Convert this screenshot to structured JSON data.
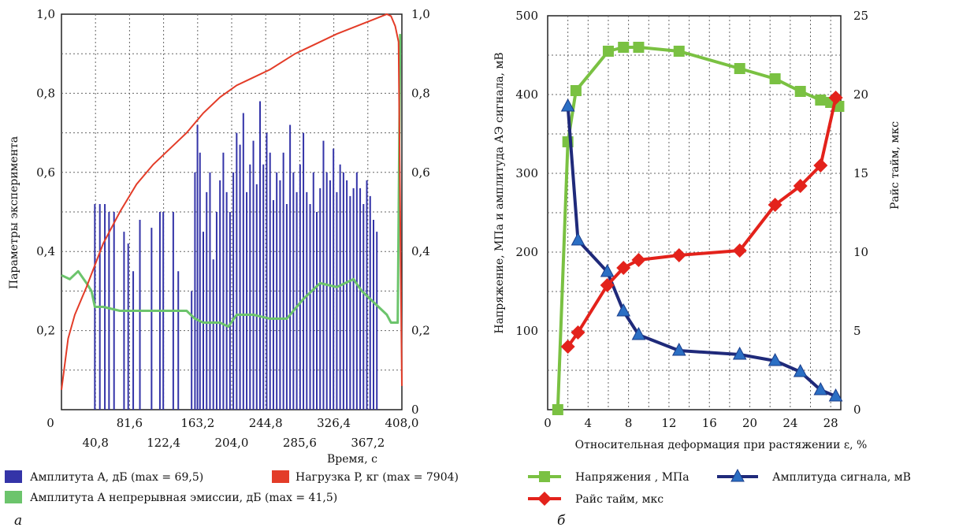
{
  "chart_data": [
    {
      "type": "bar",
      "panel_label": "а",
      "xlabel": "Время, с",
      "ylabel": "Параметры эксперимента",
      "xlim": [
        0,
        408
      ],
      "ylim": [
        0,
        1.0
      ],
      "x_ticks_upper": [
        "0",
        "81,6",
        "163,2",
        "244,8",
        "326,4",
        "408,0"
      ],
      "x_ticks_lower": [
        "40,8",
        "122,4",
        "204,0",
        "285,6",
        "367,2"
      ],
      "y_ticks_left": [
        "0,2",
        "0,4",
        "0,6",
        "0,8",
        "1,0"
      ],
      "y_ticks_right": [
        "0",
        "0,2",
        "0,4",
        "0,6",
        "0,8",
        "1,0"
      ],
      "grid": true,
      "legend_position": "bottom",
      "colors": {
        "amplitude": "#3434a8",
        "load": "#e33c28",
        "continuous": "#6cc46c"
      },
      "series": [
        {
          "name": "Амплитута A, дБ (max = 69,5)",
          "kind": "bars",
          "x": [
            40,
            46,
            52,
            57,
            63,
            75,
            80,
            86,
            94,
            108,
            118,
            122,
            134,
            140,
            156,
            160,
            163,
            166,
            170,
            174,
            178,
            182,
            186,
            190,
            194,
            198,
            202,
            206,
            210,
            214,
            218,
            222,
            226,
            230,
            234,
            238,
            242,
            246,
            250,
            254,
            258,
            262,
            266,
            270,
            274,
            278,
            282,
            286,
            290,
            294,
            298,
            302,
            306,
            310,
            314,
            318,
            322,
            326,
            330,
            334,
            338,
            342,
            346,
            350,
            354,
            358,
            362,
            366,
            370,
            374,
            378
          ],
          "values": [
            0.52,
            0.52,
            0.52,
            0.5,
            0.5,
            0.45,
            0.42,
            0.35,
            0.48,
            0.46,
            0.5,
            0.5,
            0.5,
            0.35,
            0.3,
            0.6,
            0.72,
            0.65,
            0.45,
            0.55,
            0.6,
            0.38,
            0.5,
            0.58,
            0.65,
            0.55,
            0.5,
            0.6,
            0.7,
            0.67,
            0.75,
            0.55,
            0.62,
            0.68,
            0.57,
            0.78,
            0.62,
            0.7,
            0.65,
            0.53,
            0.6,
            0.58,
            0.65,
            0.52,
            0.72,
            0.6,
            0.55,
            0.62,
            0.7,
            0.55,
            0.52,
            0.6,
            0.5,
            0.56,
            0.68,
            0.6,
            0.58,
            0.66,
            0.55,
            0.62,
            0.6,
            0.58,
            0.54,
            0.56,
            0.6,
            0.56,
            0.52,
            0.58,
            0.54,
            0.48,
            0.45
          ]
        },
        {
          "name": "Нагрузка P, кг (max = 7904)",
          "kind": "line",
          "x": [
            0,
            8,
            16,
            30,
            50,
            70,
            90,
            110,
            130,
            150,
            170,
            190,
            210,
            230,
            250,
            280,
            300,
            330,
            360,
            378,
            390,
            395,
            400,
            404,
            408
          ],
          "y": [
            0.05,
            0.18,
            0.24,
            0.31,
            0.42,
            0.5,
            0.57,
            0.62,
            0.66,
            0.7,
            0.75,
            0.79,
            0.82,
            0.84,
            0.86,
            0.9,
            0.92,
            0.95,
            0.975,
            0.99,
            1.0,
            0.995,
            0.97,
            0.93,
            0.06
          ]
        },
        {
          "name": "Амплитута A непрерывная эмиссии, дБ (max = 41,5)",
          "kind": "line",
          "x": [
            0,
            10,
            20,
            30,
            36,
            40,
            50,
            70,
            90,
            110,
            130,
            150,
            160,
            170,
            190,
            200,
            210,
            230,
            250,
            270,
            290,
            310,
            330,
            350,
            360,
            370,
            380,
            390,
            395,
            400,
            403,
            406
          ],
          "y": [
            0.34,
            0.33,
            0.35,
            0.32,
            0.3,
            0.26,
            0.26,
            0.25,
            0.25,
            0.25,
            0.25,
            0.25,
            0.23,
            0.22,
            0.22,
            0.21,
            0.24,
            0.24,
            0.23,
            0.23,
            0.28,
            0.32,
            0.31,
            0.33,
            0.3,
            0.28,
            0.26,
            0.24,
            0.22,
            0.22,
            0.22,
            0.95
          ]
        }
      ],
      "legend": [
        {
          "label": "Амплитута A, дБ (max = 69,5)",
          "color": "#3434a8"
        },
        {
          "label": "Нагрузка P, кг (max = 7904)",
          "color": "#e33c28"
        },
        {
          "label": "Амплитута A непрерывная эмиссии, дБ (max = 41,5)",
          "color": "#6cc46c"
        }
      ]
    },
    {
      "type": "line",
      "panel_label": "б",
      "xlabel": "Относительная деформация при растяжении ε, %",
      "ylabel": "Напряжение, МПа и амплитуда АЭ сигнала, мВ",
      "ylabel2": "Райс тайм, мкс",
      "xlim": [
        0,
        29
      ],
      "ylim": [
        0,
        500
      ],
      "y2lim": [
        0,
        25
      ],
      "x_ticks": [
        "0",
        "4",
        "8",
        "12",
        "16",
        "20",
        "24",
        "28"
      ],
      "y_ticks_left": [
        "100",
        "200",
        "300",
        "400",
        "500"
      ],
      "y_ticks_right": [
        "0",
        "5",
        "10",
        "15",
        "20",
        "25"
      ],
      "grid": true,
      "legend_position": "bottom",
      "series": [
        {
          "name": "Напряжения , МПа",
          "marker": "square",
          "color": "#7ac142",
          "axis": "left",
          "x": [
            1.0,
            2.0,
            2.8,
            6.0,
            7.5,
            9.0,
            13.0,
            19.0,
            22.5,
            25.0,
            27.0,
            28.0,
            28.8
          ],
          "y": [
            0,
            340,
            405,
            455,
            460,
            460,
            455,
            433,
            420,
            404,
            393,
            390,
            385
          ]
        },
        {
          "name": "Амплитуда сигнала, мВ",
          "marker": "triangle",
          "color": "#1f2a7a",
          "axis": "left",
          "x": [
            2.0,
            3.0,
            5.9,
            7.5,
            9.0,
            13.0,
            19.0,
            22.5,
            25.0,
            27.0,
            28.5
          ],
          "y": [
            385,
            215,
            175,
            125,
            95,
            75,
            70,
            62,
            48,
            25,
            17
          ]
        },
        {
          "name": "Райс тайм, мкс",
          "marker": "diamond",
          "color": "#e3221b",
          "axis": "right",
          "x": [
            2.0,
            3.0,
            5.9,
            7.5,
            9.0,
            13.0,
            19.0,
            22.5,
            25.0,
            27.0,
            28.5
          ],
          "y": [
            4.0,
            4.9,
            7.9,
            9.0,
            9.5,
            9.8,
            10.1,
            13.0,
            14.2,
            15.5,
            19.8
          ]
        }
      ]
    }
  ]
}
